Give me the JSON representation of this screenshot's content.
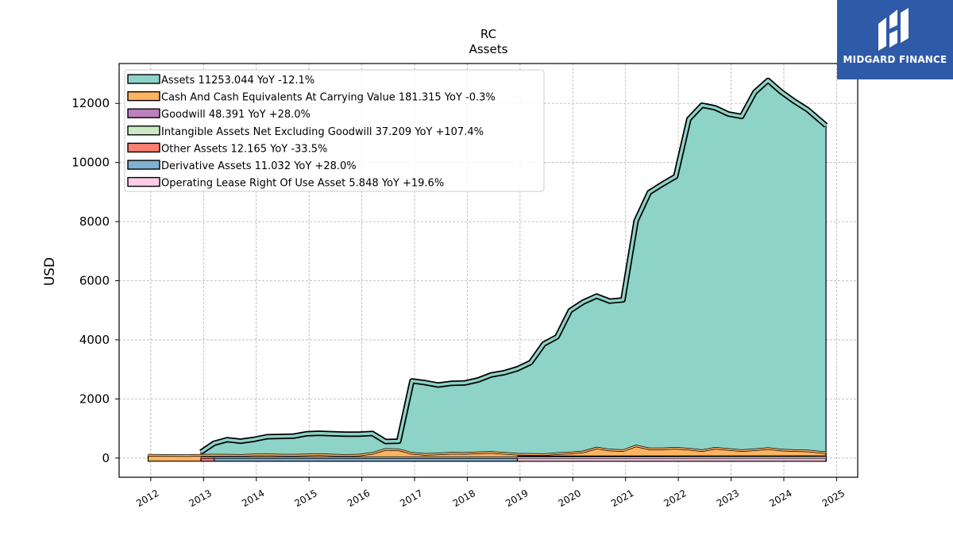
{
  "chart_data": {
    "type": "area",
    "title": "RC",
    "subtitle": "Assets",
    "ylabel": "USD",
    "xlabel": "",
    "xlim": [
      2011.4,
      2025.4
    ],
    "ylim": [
      -650,
      13350
    ],
    "x_ticks": [
      "2012",
      "2013",
      "2014",
      "2015",
      "2016",
      "2017",
      "2018",
      "2019",
      "2020",
      "2021",
      "2022",
      "2023",
      "2024",
      "2025"
    ],
    "y_ticks": [
      0,
      2000,
      4000,
      6000,
      8000,
      10000,
      12000
    ],
    "grid": true,
    "legend_position": "top-left",
    "series": [
      {
        "name": "Assets  11253.044 YoY -12.1%",
        "color": "#8dd3c7",
        "x": [
          2012.95,
          2013.2,
          2013.45,
          2013.7,
          2013.95,
          2014.2,
          2014.45,
          2014.7,
          2014.95,
          2015.2,
          2015.45,
          2015.7,
          2015.95,
          2016.2,
          2016.45,
          2016.7,
          2016.95,
          2017.2,
          2017.45,
          2017.7,
          2017.95,
          2018.2,
          2018.45,
          2018.7,
          2018.95,
          2019.2,
          2019.45,
          2019.7,
          2019.95,
          2020.2,
          2020.45,
          2020.7,
          2020.95,
          2021.2,
          2021.45,
          2021.7,
          2021.95,
          2022.2,
          2022.45,
          2022.7,
          2022.95,
          2023.2,
          2023.45,
          2023.7,
          2023.95,
          2024.2,
          2024.45,
          2024.8
        ],
        "values": [
          200,
          500,
          620,
          570,
          630,
          720,
          730,
          740,
          820,
          840,
          820,
          810,
          810,
          830,
          560,
          570,
          2610,
          2550,
          2470,
          2530,
          2540,
          2640,
          2810,
          2890,
          3020,
          3230,
          3860,
          4100,
          4990,
          5280,
          5480,
          5310,
          5350,
          8030,
          8990,
          9270,
          9530,
          11470,
          11940,
          11850,
          11640,
          11560,
          12380,
          12780,
          12390,
          12070,
          11790,
          11253
        ]
      },
      {
        "name": "Cash And Cash Equivalents At Carrying Value  181.315 YoY -0.3%",
        "color": "#fdb462",
        "x": [
          2011.95,
          2012.2,
          2012.45,
          2012.7,
          2012.95,
          2013.2,
          2013.45,
          2013.7,
          2013.95,
          2014.2,
          2014.45,
          2014.7,
          2014.95,
          2015.2,
          2015.45,
          2015.7,
          2015.95,
          2016.2,
          2016.45,
          2016.7,
          2016.95,
          2017.2,
          2017.45,
          2017.7,
          2017.95,
          2018.2,
          2018.45,
          2018.7,
          2018.95,
          2019.2,
          2019.45,
          2019.7,
          2019.95,
          2020.2,
          2020.45,
          2020.7,
          2020.95,
          2021.2,
          2021.45,
          2021.7,
          2021.95,
          2022.2,
          2022.45,
          2022.7,
          2022.95,
          2023.2,
          2023.45,
          2023.7,
          2023.95,
          2024.2,
          2024.45,
          2024.8
        ],
        "values": [
          95,
          90,
          85,
          80,
          95,
          100,
          95,
          90,
          105,
          110,
          100,
          95,
          105,
          115,
          100,
          90,
          100,
          160,
          290,
          280,
          160,
          120,
          140,
          165,
          155,
          175,
          190,
          160,
          130,
          120,
          115,
          150,
          170,
          210,
          340,
          270,
          250,
          410,
          310,
          310,
          330,
          300,
          250,
          330,
          290,
          250,
          280,
          320,
          270,
          250,
          240,
          181
        ]
      },
      {
        "name": "Goodwill  48.391 YoY +28.0%",
        "color": "#bc80bd",
        "x": [
          2018.95,
          2024.8
        ],
        "values": [
          40,
          48
        ]
      },
      {
        "name": "Intangible Assets Net Excluding Goodwill  37.209 YoY +107.4%",
        "color": "#ccebc5",
        "x": [
          2018.95,
          2024.8
        ],
        "values": [
          20,
          37
        ]
      },
      {
        "name": "Other Assets  12.165 YoY -33.5%",
        "color": "#fb8072",
        "x": [
          2012.95,
          2013.2
        ],
        "values": [
          15,
          12
        ]
      },
      {
        "name": "Derivative Assets  11.032 YoY +28.0%",
        "color": "#80b1d3",
        "x": [
          2013.2,
          2018.95
        ],
        "values": [
          10,
          11
        ]
      },
      {
        "name": "Operating Lease Right Of Use Asset  5.848 YoY +19.6%",
        "color": "#fccde5",
        "x": [
          2018.95,
          2024.8
        ],
        "values": [
          5,
          6
        ]
      }
    ]
  },
  "brand": {
    "name": "MIDGARD FINANCE",
    "background": "#2e5aa8"
  }
}
